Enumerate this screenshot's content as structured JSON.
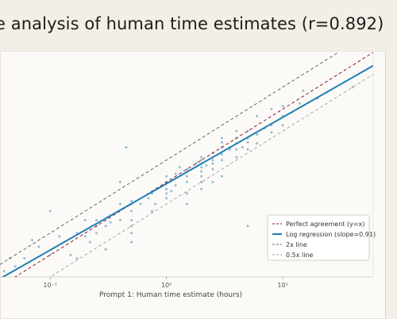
{
  "chart_data": {
    "type": "scatter",
    "title": "e analysis of human time estimates (r=0.892)",
    "xlabel": "Prompt 1: Human time estimate (hours)",
    "ylabel": "",
    "x_scale": "log",
    "y_scale": "log",
    "xlim": [
      0.037,
      60
    ],
    "ylim": [
      0.05,
      60
    ],
    "x_ticks": [
      {
        "value": 0.1,
        "label": "10⁻¹"
      },
      {
        "value": 1,
        "label": "10⁰"
      },
      {
        "value": 10,
        "label": "10¹"
      }
    ],
    "grid": false,
    "legend_position": "bottom-right",
    "legend": [
      {
        "label": "Perfect agreement (y=x)",
        "style": "dashed",
        "color": "#8b1a3a"
      },
      {
        "label": "Log regression (slope=0.91)",
        "style": "solid",
        "color": "#1f7fb4"
      },
      {
        "label": "2x line",
        "style": "dashed",
        "color": "#666666"
      },
      {
        "label": "0.5x line",
        "style": "dashed",
        "color": "#aaaaaa"
      }
    ],
    "lines": [
      {
        "name": "Perfect agreement (y=x)",
        "type": "power",
        "a": 1.0,
        "b": 1.0,
        "color": "#8b1a3a",
        "dash": "4,3"
      },
      {
        "name": "Log regression (slope=0.91)",
        "type": "power",
        "a": 0.95,
        "b": 0.91,
        "color": "#1f7fb4",
        "dash": ""
      },
      {
        "name": "2x line",
        "type": "power",
        "a": 2.0,
        "b": 1.0,
        "color": "#666666",
        "dash": "4,3"
      },
      {
        "name": "0.5x line",
        "type": "power",
        "a": 0.5,
        "b": 1.0,
        "color": "#aaaaaa",
        "dash": "4,3"
      }
    ],
    "points_color": "#7fb0d0",
    "points": [
      [
        0.04,
        0.06
      ],
      [
        0.045,
        0.09
      ],
      [
        0.05,
        0.07
      ],
      [
        0.06,
        0.09
      ],
      [
        0.07,
        0.16
      ],
      [
        0.08,
        0.13
      ],
      [
        0.1,
        0.4
      ],
      [
        0.1,
        0.1
      ],
      [
        0.12,
        0.18
      ],
      [
        0.15,
        0.1
      ],
      [
        0.17,
        0.2
      ],
      [
        0.17,
        0.09
      ],
      [
        0.2,
        0.3
      ],
      [
        0.2,
        0.18
      ],
      [
        0.22,
        0.15
      ],
      [
        0.25,
        0.2
      ],
      [
        0.25,
        0.3
      ],
      [
        0.25,
        0.25
      ],
      [
        0.3,
        0.25
      ],
      [
        0.3,
        0.12
      ],
      [
        0.33,
        0.28
      ],
      [
        0.4,
        0.5
      ],
      [
        0.4,
        0.3
      ],
      [
        0.4,
        1.0
      ],
      [
        0.45,
        3.0
      ],
      [
        0.5,
        0.5
      ],
      [
        0.5,
        0.4
      ],
      [
        0.5,
        0.55
      ],
      [
        0.5,
        0.3
      ],
      [
        0.5,
        0.25
      ],
      [
        0.5,
        0.2
      ],
      [
        0.5,
        0.15
      ],
      [
        0.6,
        0.5
      ],
      [
        0.7,
        0.6
      ],
      [
        0.75,
        0.7
      ],
      [
        0.75,
        0.4
      ],
      [
        0.8,
        0.5
      ],
      [
        1.0,
        1.0
      ],
      [
        1.0,
        0.8
      ],
      [
        1.0,
        1.2
      ],
      [
        1.0,
        0.6
      ],
      [
        1.0,
        0.7
      ],
      [
        1.1,
        0.75
      ],
      [
        1.2,
        1.3
      ],
      [
        1.2,
        0.9
      ],
      [
        1.3,
        1.6
      ],
      [
        1.5,
        1.5
      ],
      [
        1.5,
        1.0
      ],
      [
        1.5,
        0.5
      ],
      [
        1.5,
        0.7
      ],
      [
        1.5,
        1.2
      ],
      [
        1.8,
        1.8
      ],
      [
        2.0,
        2.0
      ],
      [
        2.0,
        2.2
      ],
      [
        2.0,
        1.6
      ],
      [
        2.0,
        1.4
      ],
      [
        2.0,
        1.8
      ],
      [
        2.0,
        1.2
      ],
      [
        2.0,
        0.8
      ],
      [
        2.0,
        1.0
      ],
      [
        2.2,
        1.7
      ],
      [
        2.5,
        1.8
      ],
      [
        2.5,
        1.0
      ],
      [
        2.5,
        2.5
      ],
      [
        2.5,
        2.0
      ],
      [
        2.5,
        1.5
      ],
      [
        3.0,
        2.4
      ],
      [
        3.0,
        3.0
      ],
      [
        3.0,
        3.5
      ],
      [
        3.0,
        2.0
      ],
      [
        3.0,
        1.2
      ],
      [
        3.0,
        4.0
      ],
      [
        3.5,
        3.0
      ],
      [
        3.5,
        2.8
      ],
      [
        4.0,
        4.0
      ],
      [
        4.0,
        3.4
      ],
      [
        4.0,
        2.8
      ],
      [
        4.0,
        5.0
      ],
      [
        4.0,
        2.2
      ],
      [
        4.5,
        3.0
      ],
      [
        5.0,
        5.0
      ],
      [
        5.0,
        4.0
      ],
      [
        5.0,
        3.5
      ],
      [
        5.0,
        2.8
      ],
      [
        5.0,
        0.25
      ],
      [
        6.0,
        4.5
      ],
      [
        6.0,
        3.4
      ],
      [
        6.0,
        8.0
      ],
      [
        7.0,
        5.5
      ],
      [
        8.0,
        6.0
      ],
      [
        8.0,
        10.0
      ],
      [
        8.0,
        4.8
      ],
      [
        10.0,
        8.0
      ],
      [
        10.0,
        6.0
      ],
      [
        10.0,
        11.0
      ],
      [
        12.0,
        9.0
      ],
      [
        14.0,
        12.0
      ],
      [
        15.0,
        18.0
      ],
      [
        20.0,
        14.0
      ],
      [
        40.0,
        20.0
      ]
    ]
  }
}
